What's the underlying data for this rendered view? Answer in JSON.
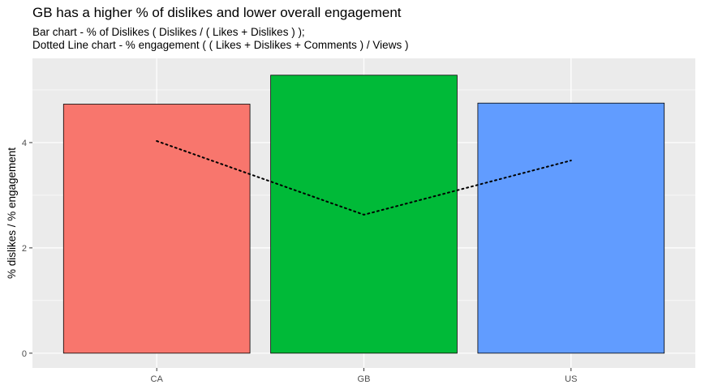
{
  "chart_data": {
    "type": "bar",
    "title": "GB has a higher % of dislikes and lower overall engagement",
    "subtitle_lines": [
      "Bar chart - % of Dislikes ( Dislikes / ( Likes + Dislikes ) );",
      "Dotted Line chart - % engagement ( ( Likes + Dislikes + Comments ) / Views )"
    ],
    "xlabel": "",
    "ylabel": "% dislikes / % engagement",
    "categories": [
      "CA",
      "GB",
      "US"
    ],
    "ylim": [
      -0.28,
      5.6
    ],
    "yticks": [
      0,
      2,
      4
    ],
    "grid": true,
    "legend": "none",
    "series": [
      {
        "type": "bar",
        "values": [
          4.73,
          5.28,
          4.75
        ],
        "colors": [
          "#F8766D",
          "#00BA38",
          "#619CFF"
        ]
      },
      {
        "type": "line",
        "style": "dotted",
        "values": [
          4.03,
          2.63,
          3.66
        ],
        "color": "#000000"
      }
    ]
  }
}
